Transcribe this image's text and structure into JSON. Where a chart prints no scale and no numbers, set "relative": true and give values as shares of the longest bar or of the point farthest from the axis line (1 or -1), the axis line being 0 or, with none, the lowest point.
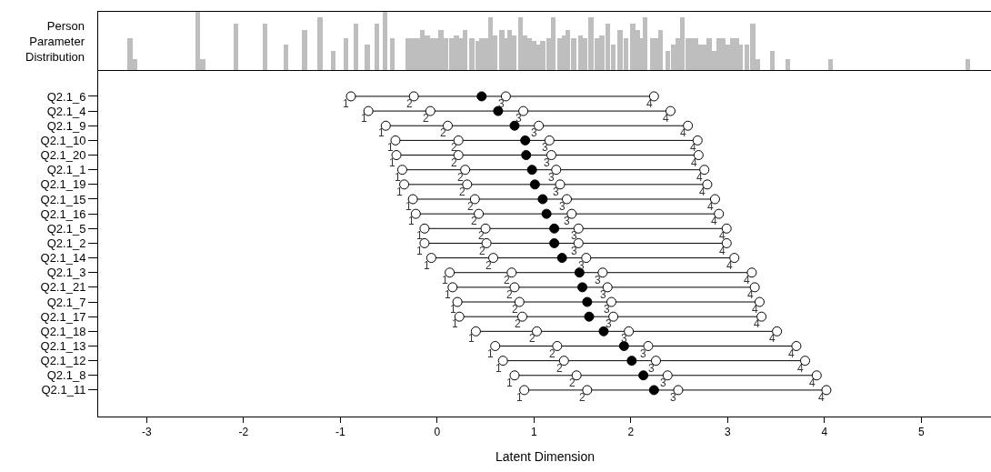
{
  "chart_data": [
    {
      "type": "bar",
      "relative": true,
      "ylabel": "Person Parameter Distribution",
      "color": "#bebebe",
      "tick_labels": false,
      "legend": false,
      "grid": false,
      "xlim": [
        -3.5,
        5.72
      ],
      "x": [
        -3.17,
        -3.12,
        -2.47,
        -2.42,
        -2.08,
        -1.78,
        -1.56,
        -1.37,
        -1.21,
        -1.07,
        -0.94,
        -0.84,
        -0.72,
        -0.62,
        -0.54,
        -0.46,
        -0.3,
        -0.25,
        -0.2,
        -0.15,
        -0.1,
        -0.05,
        0.0,
        0.04,
        0.09,
        0.15,
        0.2,
        0.25,
        0.29,
        0.36,
        0.42,
        0.46,
        0.5,
        0.55,
        0.6,
        0.67,
        0.71,
        0.75,
        0.79,
        0.86,
        0.91,
        0.95,
        1.0,
        1.05,
        1.09,
        1.15,
        1.2,
        1.27,
        1.31,
        1.35,
        1.41,
        1.48,
        1.53,
        1.59,
        1.65,
        1.7,
        1.76,
        1.82,
        1.89,
        1.95,
        2.02,
        2.07,
        2.11,
        2.15,
        2.22,
        2.26,
        2.31,
        2.38,
        2.44,
        2.49,
        2.53,
        2.59,
        2.63,
        2.67,
        2.72,
        2.76,
        2.81,
        2.86,
        2.91,
        2.95,
        3.0,
        3.05,
        3.09,
        3.13,
        3.2,
        3.26,
        3.31,
        3.46,
        3.62,
        4.06,
        5.48
      ],
      "values": [
        0.55,
        0.18,
        1.0,
        0.18,
        0.8,
        0.8,
        0.43,
        0.69,
        0.9,
        0.33,
        0.55,
        0.8,
        0.43,
        0.8,
        1.0,
        0.55,
        0.55,
        0.55,
        0.55,
        0.69,
        0.6,
        0.55,
        0.55,
        0.69,
        0.55,
        0.55,
        0.6,
        0.55,
        0.69,
        0.55,
        0.5,
        0.55,
        0.55,
        0.9,
        0.6,
        0.69,
        0.55,
        0.69,
        0.6,
        0.9,
        0.6,
        0.55,
        0.5,
        0.43,
        0.5,
        0.55,
        0.9,
        0.55,
        0.6,
        0.69,
        0.55,
        0.6,
        0.55,
        0.9,
        0.55,
        0.6,
        0.8,
        0.43,
        0.69,
        0.55,
        0.8,
        0.69,
        0.55,
        0.9,
        0.55,
        0.55,
        0.69,
        0.33,
        0.43,
        0.55,
        0.9,
        0.55,
        0.55,
        0.55,
        0.43,
        0.43,
        0.55,
        0.33,
        0.55,
        0.55,
        0.43,
        0.55,
        0.55,
        0.43,
        0.43,
        0.8,
        0.18,
        0.33,
        0.18,
        0.18,
        0.18
      ]
    },
    {
      "type": "scatter",
      "orientation": "horizontal",
      "xlabel": "Latent Dimension",
      "xlim": [
        -3.5,
        5.72
      ],
      "xticks": [
        -3,
        -2,
        -1,
        0,
        1,
        2,
        3,
        4,
        5
      ],
      "legend": false,
      "grid": false,
      "marker": "circle",
      "categories": [
        "Q2.1_6",
        "Q2.1_4",
        "Q2.1_9",
        "Q2.1_10",
        "Q2.1_20",
        "Q2.1_1",
        "Q2.1_19",
        "Q2.1_15",
        "Q2.1_16",
        "Q2.1_5",
        "Q2.1_2",
        "Q2.1_14",
        "Q2.1_3",
        "Q2.1_21",
        "Q2.1_7",
        "Q2.1_17",
        "Q2.1_18",
        "Q2.1_13",
        "Q2.1_12",
        "Q2.1_8",
        "Q2.1_11"
      ],
      "series": [
        {
          "color": "#000000",
          "values": [
            0.46,
            0.63,
            0.8,
            0.91,
            0.92,
            0.98,
            1.01,
            1.09,
            1.13,
            1.21,
            1.21,
            1.29,
            1.47,
            1.5,
            1.55,
            1.57,
            1.72,
            1.93,
            2.01,
            2.13,
            2.24
          ]
        },
        {
          "name": "1",
          "color": "#ffffff",
          "values": [
            -0.89,
            -0.71,
            -0.53,
            -0.43,
            -0.42,
            -0.36,
            -0.34,
            -0.25,
            -0.22,
            -0.13,
            -0.13,
            -0.06,
            0.13,
            0.16,
            0.21,
            0.23,
            0.4,
            0.6,
            0.68,
            0.8,
            0.9
          ]
        },
        {
          "name": "2",
          "color": "#ffffff",
          "values": [
            -0.24,
            -0.07,
            0.11,
            0.22,
            0.22,
            0.29,
            0.31,
            0.39,
            0.43,
            0.5,
            0.51,
            0.58,
            0.77,
            0.8,
            0.85,
            0.88,
            1.03,
            1.24,
            1.31,
            1.44,
            1.55
          ]
        },
        {
          "name": "3",
          "color": "#ffffff",
          "values": [
            0.71,
            0.89,
            1.05,
            1.16,
            1.18,
            1.23,
            1.27,
            1.34,
            1.39,
            1.46,
            1.46,
            1.54,
            1.71,
            1.76,
            1.8,
            1.82,
            1.98,
            2.18,
            2.26,
            2.38,
            2.49
          ]
        },
        {
          "name": "4",
          "color": "#ffffff",
          "values": [
            2.24,
            2.41,
            2.59,
            2.69,
            2.7,
            2.76,
            2.79,
            2.87,
            2.91,
            2.99,
            2.99,
            3.07,
            3.25,
            3.28,
            3.33,
            3.35,
            3.51,
            3.71,
            3.8,
            3.92,
            4.02
          ]
        }
      ]
    }
  ]
}
